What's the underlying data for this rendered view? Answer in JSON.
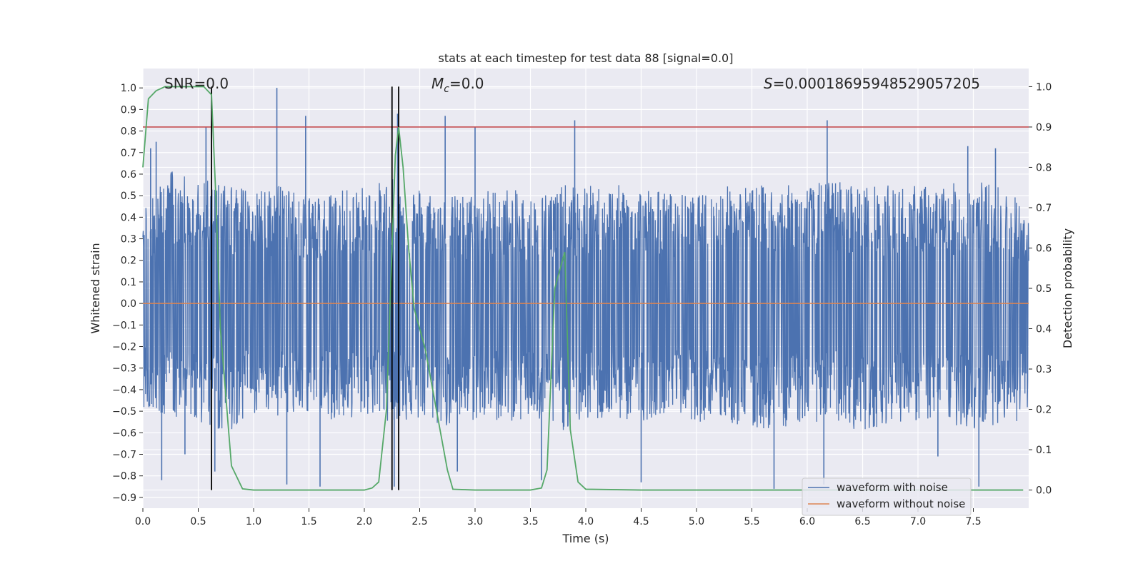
{
  "chart_data": {
    "type": "line",
    "title": "stats at each timestep for test data 88 [signal=0.0]",
    "xlabel": "Time (s)",
    "ylabel": "Whitened strain",
    "y2label": "Detection probability",
    "xlim": [
      0.0,
      8.0
    ],
    "ylim": [
      -0.95,
      1.09
    ],
    "y2lim": [
      -0.045,
      1.045
    ],
    "x_ticks": [
      0.0,
      0.5,
      1.0,
      1.5,
      2.0,
      2.5,
      3.0,
      3.5,
      4.0,
      4.5,
      5.0,
      5.5,
      6.0,
      6.5,
      7.0,
      7.5
    ],
    "x_tick_labels": [
      "0.0",
      "0.5",
      "1.0",
      "1.5",
      "2.0",
      "2.5",
      "3.0",
      "3.5",
      "4.0",
      "4.5",
      "5.0",
      "5.5",
      "6.0",
      "6.5",
      "7.0",
      "7.5"
    ],
    "y_ticks": [
      1.0,
      0.9,
      0.8,
      0.7,
      0.6,
      0.5,
      0.4,
      0.3,
      0.2,
      0.1,
      0.0,
      -0.1,
      -0.2,
      -0.3,
      -0.4,
      -0.5,
      -0.6,
      -0.7,
      -0.8,
      -0.9
    ],
    "y_tick_labels": [
      "1.0",
      "0.9",
      "0.8",
      "0.7",
      "0.6",
      "0.5",
      "0.4",
      "0.3",
      "0.2",
      "0.1",
      "0.0",
      "−0.1",
      "−0.2",
      "−0.3",
      "−0.4",
      "−0.5",
      "−0.6",
      "−0.7",
      "−0.8",
      "−0.9"
    ],
    "y2_ticks": [
      1.0,
      0.9,
      0.8,
      0.7,
      0.6,
      0.5,
      0.4,
      0.3,
      0.2,
      0.1,
      0.0
    ],
    "y2_tick_labels": [
      "1.0",
      "0.9",
      "0.8",
      "0.7",
      "0.6",
      "0.5",
      "0.4",
      "0.3",
      "0.2",
      "0.1",
      "0.0"
    ],
    "grid": true,
    "legend_position": "lower-right",
    "annotations": {
      "snr": "SNR=0.0",
      "mc_symbol": "M",
      "mc_sub": "c",
      "mc_value": "=0.0",
      "s_symbol": "S",
      "s_value": "=0.00018695948529057205"
    },
    "threshold": 0.9,
    "threshold_color": "#c44e52",
    "vertical_markers": [
      0.62,
      2.25,
      2.31
    ],
    "series": [
      {
        "name": "waveform with noise",
        "color": "#4c72b0",
        "axis": "left",
        "envelope": {
          "x": [
            0.0,
            0.25,
            0.5,
            0.75,
            1.0,
            1.25,
            1.5,
            1.75,
            2.0,
            2.25,
            2.5,
            2.75,
            3.0,
            3.25,
            3.5,
            3.75,
            4.0,
            4.25,
            4.5,
            4.75,
            5.0,
            5.25,
            5.5,
            5.75,
            6.0,
            6.25,
            6.5,
            6.75,
            7.0,
            7.25,
            7.5,
            7.75,
            8.0
          ],
          "upper": [
            0.45,
            0.62,
            0.58,
            0.55,
            0.52,
            0.55,
            0.5,
            0.52,
            0.55,
            0.58,
            0.55,
            0.5,
            0.52,
            0.55,
            0.5,
            0.55,
            0.55,
            0.55,
            0.55,
            0.52,
            0.5,
            0.55,
            0.55,
            0.55,
            0.55,
            0.58,
            0.55,
            0.55,
            0.55,
            0.55,
            0.58,
            0.55,
            0.45
          ],
          "lower": [
            -0.5,
            -0.55,
            -0.55,
            -0.6,
            -0.52,
            -0.55,
            -0.5,
            -0.55,
            -0.52,
            -0.55,
            -0.55,
            -0.58,
            -0.55,
            -0.55,
            -0.55,
            -0.6,
            -0.55,
            -0.55,
            -0.55,
            -0.5,
            -0.55,
            -0.55,
            -0.6,
            -0.58,
            -0.55,
            -0.55,
            -0.6,
            -0.55,
            -0.55,
            -0.55,
            -0.6,
            -0.55,
            -0.55
          ]
        },
        "spikes_up": [
          [
            0.07,
            0.72
          ],
          [
            0.12,
            0.75
          ],
          [
            0.57,
            0.82
          ],
          [
            1.21,
            1.0
          ],
          [
            1.47,
            0.87
          ],
          [
            2.3,
            0.88
          ],
          [
            2.73,
            0.87
          ],
          [
            3.0,
            0.82
          ],
          [
            3.9,
            0.85
          ],
          [
            6.18,
            0.85
          ],
          [
            7.45,
            0.73
          ],
          [
            7.7,
            0.72
          ]
        ],
        "spikes_down": [
          [
            0.17,
            -0.82
          ],
          [
            0.38,
            -0.7
          ],
          [
            0.65,
            -0.78
          ],
          [
            1.3,
            -0.84
          ],
          [
            1.6,
            -0.85
          ],
          [
            2.27,
            -0.85
          ],
          [
            2.84,
            -0.78
          ],
          [
            3.6,
            -0.82
          ],
          [
            4.5,
            -0.83
          ],
          [
            5.7,
            -0.86
          ],
          [
            6.15,
            -0.84
          ],
          [
            7.18,
            -0.71
          ],
          [
            7.55,
            -0.85
          ]
        ]
      },
      {
        "name": "waveform without noise",
        "color": "#dd8452",
        "axis": "left",
        "x": [
          0.0,
          8.0
        ],
        "y": [
          0.0,
          0.0
        ]
      },
      {
        "name": "Detection probability",
        "color": "#55a868",
        "axis": "right",
        "x": [
          0.0,
          0.05,
          0.12,
          0.2,
          0.3,
          0.45,
          0.55,
          0.62,
          0.66,
          0.7,
          0.8,
          0.9,
          1.0,
          1.5,
          2.0,
          2.07,
          2.13,
          2.2,
          2.25,
          2.28,
          2.31,
          2.35,
          2.4,
          2.45,
          2.55,
          2.65,
          2.75,
          2.8,
          3.0,
          3.5,
          3.6,
          3.65,
          3.72,
          3.81,
          3.86,
          3.93,
          4.0,
          4.5,
          5.0,
          5.5,
          6.0,
          6.5,
          7.0,
          7.5,
          7.95
        ],
        "y": [
          0.8,
          0.97,
          0.99,
          1.0,
          1.0,
          1.0,
          1.0,
          0.98,
          0.72,
          0.4,
          0.06,
          0.003,
          0.0,
          0.0,
          0.0,
          0.005,
          0.02,
          0.2,
          0.6,
          0.83,
          0.9,
          0.8,
          0.6,
          0.45,
          0.35,
          0.2,
          0.05,
          0.002,
          0.0,
          0.0,
          0.005,
          0.05,
          0.5,
          0.59,
          0.15,
          0.02,
          0.002,
          0.0,
          0.0,
          0.0,
          0.0,
          0.0,
          0.0,
          0.0,
          0.0
        ]
      }
    ]
  }
}
